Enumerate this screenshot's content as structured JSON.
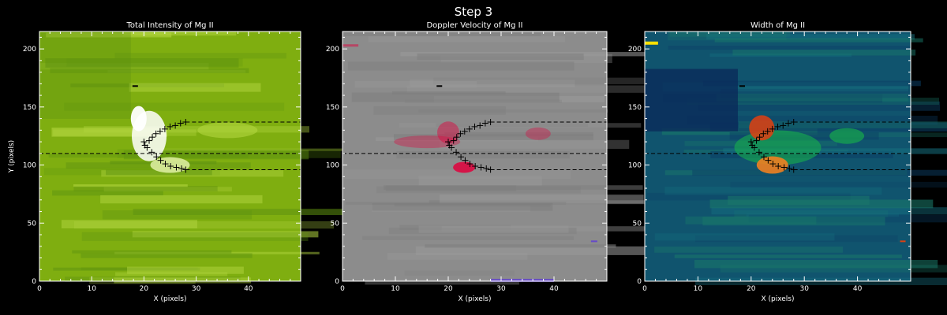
{
  "title": "Step 3",
  "chart_data": [
    {
      "type": "heatmap",
      "title": "Total Intensity of Mg II",
      "xlabel": "X (pixels)",
      "ylabel": "Y (pixels)",
      "xlim": [
        0,
        50
      ],
      "ylim": [
        0,
        215
      ],
      "xticks": [
        "0",
        "10",
        "20",
        "30",
        "40"
      ],
      "yticks": [
        "0",
        "50",
        "100",
        "150",
        "200"
      ],
      "colormap": "green-yellow-white",
      "colors": {
        "base": "#7fae10",
        "light": "#b3d640",
        "dark": "#5e9210",
        "peak": "#ffffff"
      }
    },
    {
      "type": "heatmap",
      "title": "Doppler Velocity of Mg II",
      "xlabel": "X (pixels)",
      "ylabel": "",
      "xlim": [
        0,
        50
      ],
      "ylim": [
        0,
        215
      ],
      "xticks": [
        "0",
        "10",
        "20",
        "30",
        "40"
      ],
      "yticks": [
        "0",
        "50",
        "100",
        "150",
        "200"
      ],
      "colormap": "blue-gray-red",
      "colors": {
        "base": "#8c8c8c",
        "red": "#e0003c",
        "blue": "#6040d0"
      }
    },
    {
      "type": "heatmap",
      "title": "Width of Mg II",
      "xlabel": "X (pixels)",
      "ylabel": "",
      "xlim": [
        0,
        50
      ],
      "ylim": [
        0,
        215
      ],
      "xticks": [
        "0",
        "10",
        "20",
        "30",
        "40"
      ],
      "yticks": [
        "0",
        "50",
        "100",
        "150",
        "200"
      ],
      "colormap": "blue-green-red",
      "colors": {
        "base": "#10546e",
        "dark": "#0a2a5a",
        "green": "#18b848",
        "red": "#e04010",
        "orange": "#f08020",
        "yellow": "#ffe000"
      }
    }
  ],
  "overlay": {
    "dashed_lines": [
      {
        "x0": 0,
        "x1": 50,
        "y": 110
      },
      {
        "x0": 28,
        "x1": 50,
        "y": 137
      },
      {
        "x0": 28,
        "x1": 50,
        "y": 96
      }
    ],
    "markers": [
      {
        "x": 20.0,
        "y": 120
      },
      {
        "x": 20.6,
        "y": 115
      },
      {
        "x": 20.2,
        "y": 117
      },
      {
        "x": 21.0,
        "y": 121
      },
      {
        "x": 21.6,
        "y": 124
      },
      {
        "x": 22.3,
        "y": 127
      },
      {
        "x": 23.1,
        "y": 129
      },
      {
        "x": 24.0,
        "y": 131
      },
      {
        "x": 25.0,
        "y": 133
      },
      {
        "x": 26.0,
        "y": 134
      },
      {
        "x": 27.0,
        "y": 136
      },
      {
        "x": 28.0,
        "y": 137
      },
      {
        "x": 21.5,
        "y": 111
      },
      {
        "x": 22.4,
        "y": 107
      },
      {
        "x": 23.2,
        "y": 104
      },
      {
        "x": 24.1,
        "y": 101
      },
      {
        "x": 25.1,
        "y": 99
      },
      {
        "x": 26.2,
        "y": 98
      },
      {
        "x": 27.2,
        "y": 97
      },
      {
        "x": 28.0,
        "y": 96
      }
    ]
  }
}
